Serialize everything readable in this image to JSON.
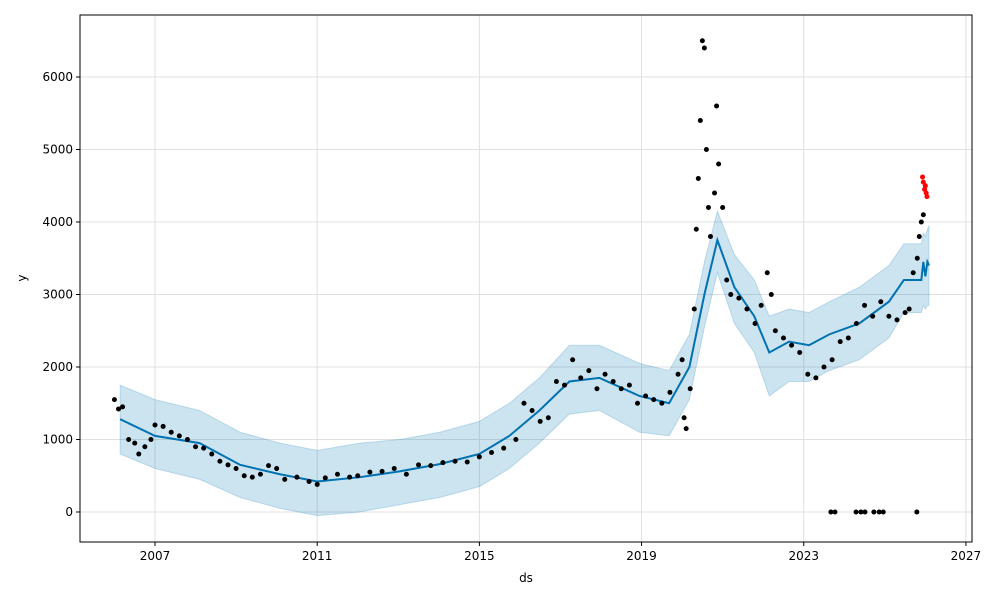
{
  "chart_data": {
    "type": "forecast",
    "x_label": "ds",
    "y_label": "y",
    "xlim": [
      2005.15,
      2027.15
    ],
    "ylim": [
      -414,
      6855
    ],
    "xticks": [
      2007,
      2011,
      2015,
      2019,
      2023,
      2027
    ],
    "yticks": [
      0,
      1000,
      2000,
      3000,
      4000,
      5000,
      6000
    ],
    "grid": true,
    "series": [
      {
        "type": "scatter",
        "color": "#000000",
        "x": [
          2006.0,
          2006.1,
          2006.2,
          2006.35,
          2006.5,
          2006.6,
          2006.75,
          2006.9,
          2007.0,
          2007.2,
          2007.4,
          2007.6,
          2007.8,
          2008.0,
          2008.2,
          2008.4,
          2008.6,
          2008.8,
          2009.0,
          2009.2,
          2009.4,
          2009.6,
          2009.8,
          2010.0,
          2010.2,
          2010.5,
          2010.8,
          2011.0,
          2011.2,
          2011.5,
          2011.8,
          2012.0,
          2012.3,
          2012.6,
          2012.9,
          2013.2,
          2013.5,
          2013.8,
          2014.1,
          2014.4,
          2014.7,
          2015.0,
          2015.3,
          2015.6,
          2015.9,
          2016.1,
          2016.3,
          2016.5,
          2016.7,
          2016.9,
          2017.1,
          2017.3,
          2017.5,
          2017.7,
          2017.9,
          2018.1,
          2018.3,
          2018.5,
          2018.7,
          2018.9,
          2019.1,
          2019.3,
          2019.5,
          2019.7,
          2019.9,
          2020.0,
          2020.05,
          2020.1,
          2020.2,
          2020.3,
          2020.35,
          2020.4,
          2020.45,
          2020.5,
          2020.55,
          2020.6,
          2020.65,
          2020.7,
          2020.8,
          2020.85,
          2020.9,
          2021.0,
          2021.1,
          2021.2,
          2021.4,
          2021.6,
          2021.8,
          2021.95,
          2022.1,
          2022.2,
          2022.3,
          2022.5,
          2022.7,
          2022.9,
          2023.1,
          2023.3,
          2023.5,
          2023.7,
          2023.9,
          2024.1,
          2024.3,
          2024.5,
          2024.7,
          2024.9,
          2025.1,
          2025.3,
          2025.5,
          2025.6,
          2025.7,
          2025.8,
          2025.85,
          2025.9,
          2025.95,
          2023.67,
          2023.77,
          2024.29,
          2024.41,
          2024.51,
          2024.73,
          2024.86,
          2024.96,
          2025.79
        ],
        "values": [
          1550,
          1420,
          1450,
          1000,
          950,
          800,
          900,
          1000,
          1200,
          1180,
          1100,
          1050,
          1000,
          900,
          880,
          800,
          700,
          650,
          600,
          500,
          480,
          520,
          640,
          600,
          450,
          480,
          420,
          380,
          470,
          520,
          480,
          500,
          550,
          560,
          600,
          520,
          650,
          640,
          680,
          700,
          690,
          760,
          820,
          880,
          1000,
          1500,
          1400,
          1250,
          1300,
          1800,
          1750,
          2100,
          1850,
          1950,
          1700,
          1900,
          1800,
          1700,
          1750,
          1500,
          1600,
          1550,
          1500,
          1650,
          1900,
          2100,
          1300,
          1150,
          1700,
          2800,
          3900,
          4600,
          5400,
          6500,
          6400,
          5000,
          4200,
          3800,
          4400,
          5600,
          4800,
          4200,
          3200,
          3000,
          2950,
          2800,
          2600,
          2850,
          3300,
          3000,
          2500,
          2400,
          2300,
          2200,
          1900,
          1850,
          2000,
          2100,
          2350,
          2400,
          2600,
          2850,
          2700,
          2900,
          2700,
          2650,
          2750,
          2800,
          3300,
          3500,
          3800,
          4000,
          4100,
          0,
          0,
          0,
          0,
          0,
          0,
          0,
          0,
          0
        ]
      },
      {
        "type": "scatter",
        "color": "#ff0000",
        "x": [
          2025.93,
          2025.95,
          2025.98,
          2026.0,
          2026.02,
          2026.04
        ],
        "values": [
          4620,
          4550,
          4450,
          4500,
          4400,
          4350
        ]
      },
      {
        "type": "line",
        "color": "#0072b2",
        "x": [
          2006.14,
          2007.0,
          2008.1,
          2009.1,
          2010.08,
          2011.0,
          2012.05,
          2013.03,
          2014.02,
          2015.0,
          2015.74,
          2016.48,
          2017.22,
          2017.96,
          2018.95,
          2019.68,
          2020.18,
          2020.55,
          2020.87,
          2021.29,
          2021.78,
          2022.15,
          2022.64,
          2023.13,
          2023.63,
          2024.37,
          2025.1,
          2025.47,
          2025.9,
          2025.95,
          2026.0,
          2026.05,
          2026.09
        ],
        "values": [
          1280,
          1050,
          950,
          650,
          520,
          420,
          480,
          560,
          660,
          800,
          1050,
          1400,
          1800,
          1850,
          1600,
          1500,
          2000,
          3000,
          3750,
          3100,
          2700,
          2200,
          2350,
          2300,
          2450,
          2600,
          2900,
          3200,
          3200,
          3450,
          3250,
          3450,
          3400
        ],
        "lower": [
          800,
          600,
          450,
          200,
          50,
          -50,
          0,
          100,
          200,
          350,
          600,
          950,
          1350,
          1400,
          1100,
          1050,
          1550,
          2550,
          3300,
          2600,
          2200,
          1600,
          1800,
          1800,
          1950,
          2100,
          2400,
          2750,
          2750,
          2850,
          2800,
          2850,
          2850
        ],
        "upper": [
          1750,
          1550,
          1400,
          1100,
          950,
          850,
          950,
          1000,
          1100,
          1250,
          1500,
          1850,
          2300,
          2300,
          2050,
          1950,
          2450,
          3450,
          4150,
          3550,
          3200,
          2700,
          2800,
          2750,
          2900,
          3100,
          3400,
          3700,
          3700,
          3850,
          3800,
          3900,
          3950
        ]
      }
    ]
  }
}
